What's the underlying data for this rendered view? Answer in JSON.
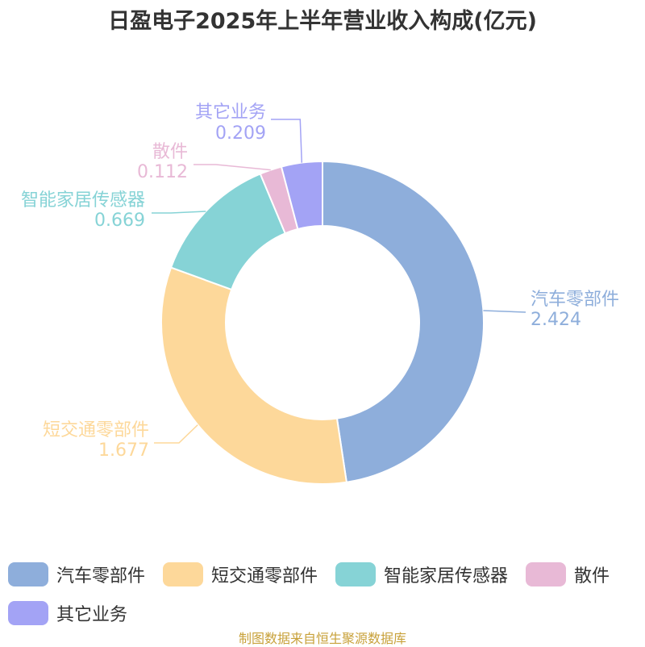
{
  "title": "日盈电子2025年上半年营业收入构成(亿元)",
  "footer": "制图数据来自恒生聚源数据库",
  "chart_data": {
    "type": "pie",
    "title": "日盈电子2025年上半年营业收入构成(亿元)",
    "donut": true,
    "categories": [
      "汽车零部件",
      "短交通零部件",
      "智能家居传感器",
      "散件",
      "其它业务"
    ],
    "values": [
      2.424,
      1.677,
      0.669,
      0.112,
      0.209
    ],
    "value_labels": [
      "2.424",
      "1.677",
      "0.669",
      "0.112",
      "0.209"
    ],
    "colors": [
      "#8eaedb",
      "#fdd89a",
      "#86d3d6",
      "#e8b9d6",
      "#a3a3f5"
    ],
    "legend_position": "bottom"
  }
}
